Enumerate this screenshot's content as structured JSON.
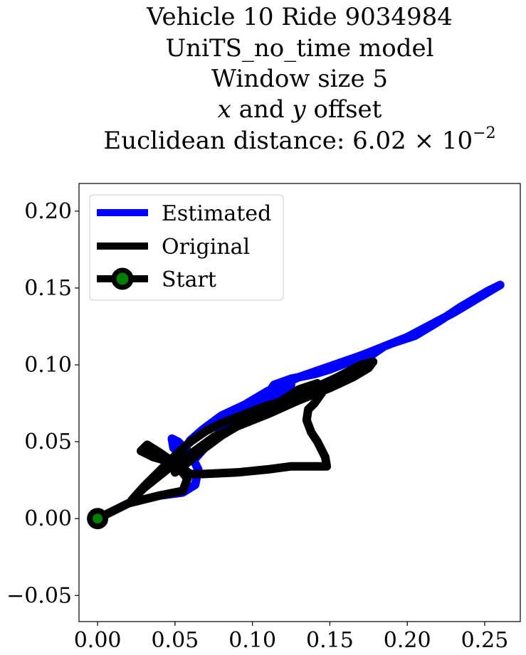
{
  "chart_data": {
    "type": "line",
    "title_lines": [
      "Vehicle 10 Ride 9034984",
      "UniTS_no_time model",
      "Window size 5"
    ],
    "title_offset": {
      "x_var": "x",
      "and1": " and ",
      "y_var": "y",
      "rest": " offset"
    },
    "title_distance": {
      "prefix": "Euclidean distance: ",
      "mantissa": "6.02",
      "times": " × 10",
      "exponent": "−2"
    },
    "xlim": [
      -0.012,
      0.273
    ],
    "ylim": [
      -0.067,
      0.218
    ],
    "x_ticks": [
      0.0,
      0.05,
      0.1,
      0.15,
      0.2,
      0.25
    ],
    "x_tick_labels": [
      "0.00",
      "0.05",
      "0.10",
      "0.15",
      "0.20",
      "0.25"
    ],
    "y_ticks": [
      -0.05,
      0.0,
      0.05,
      0.1,
      0.15,
      0.2
    ],
    "y_tick_labels": [
      "−0.05",
      "0.00",
      "0.05",
      "0.10",
      "0.15",
      "0.20"
    ],
    "grid": false,
    "legend_position": "upper-left",
    "legend": [
      {
        "label": "Estimated",
        "color": "#0000ff"
      },
      {
        "label": "Original",
        "color": "#000000"
      },
      {
        "label": "Start",
        "color": "#000000",
        "marker_fill": "#008000"
      }
    ],
    "series": [
      {
        "name": "Estimated",
        "color": "#0000ff",
        "x": [
          0.0,
          0.02,
          0.04,
          0.055,
          0.063,
          0.065,
          0.06,
          0.052,
          0.048,
          0.049,
          0.055,
          0.062,
          0.07,
          0.085,
          0.1,
          0.115,
          0.125,
          0.113,
          0.11,
          0.114,
          0.125,
          0.14,
          0.15,
          0.16,
          0.175,
          0.185,
          0.2,
          0.215,
          0.23,
          0.245,
          0.255,
          0.26,
          0.252,
          0.235,
          0.22,
          0.205,
          0.19,
          0.17,
          0.15,
          0.13,
          0.11,
          0.095,
          0.08,
          0.068,
          0.06,
          0.056,
          0.053
        ],
        "y": [
          0.0,
          0.01,
          0.015,
          0.017,
          0.022,
          0.032,
          0.042,
          0.05,
          0.052,
          0.046,
          0.04,
          0.038,
          0.047,
          0.062,
          0.072,
          0.079,
          0.087,
          0.085,
          0.081,
          0.087,
          0.091,
          0.094,
          0.097,
          0.101,
          0.105,
          0.112,
          0.118,
          0.126,
          0.134,
          0.143,
          0.149,
          0.152,
          0.148,
          0.138,
          0.128,
          0.119,
          0.114,
          0.106,
          0.099,
          0.092,
          0.083,
          0.074,
          0.067,
          0.058,
          0.051,
          0.045,
          0.038
        ]
      },
      {
        "name": "Original",
        "color": "#000000",
        "x": [
          0.0,
          0.02,
          0.04,
          0.055,
          0.058,
          0.05,
          0.04,
          0.032,
          0.028,
          0.036,
          0.05,
          0.06,
          0.068,
          0.09,
          0.11,
          0.125,
          0.14,
          0.148,
          0.147,
          0.142,
          0.138,
          0.135,
          0.136,
          0.14,
          0.145,
          0.142,
          0.13,
          0.118,
          0.108,
          0.098,
          0.08,
          0.07,
          0.06,
          0.05,
          0.04,
          0.03,
          0.022,
          0.03,
          0.045,
          0.06,
          0.075,
          0.09,
          0.11,
          0.13,
          0.15,
          0.165,
          0.175,
          0.178,
          0.17,
          0.155,
          0.14,
          0.125,
          0.11,
          0.095,
          0.08,
          0.068,
          0.06,
          0.054,
          0.05
        ],
        "y": [
          0.0,
          0.01,
          0.015,
          0.018,
          0.026,
          0.036,
          0.043,
          0.048,
          0.044,
          0.04,
          0.036,
          0.029,
          0.029,
          0.03,
          0.032,
          0.034,
          0.034,
          0.034,
          0.04,
          0.05,
          0.056,
          0.064,
          0.071,
          0.075,
          0.082,
          0.088,
          0.084,
          0.076,
          0.073,
          0.069,
          0.062,
          0.057,
          0.05,
          0.041,
          0.031,
          0.021,
          0.012,
          0.02,
          0.032,
          0.042,
          0.053,
          0.06,
          0.068,
          0.077,
          0.085,
          0.092,
          0.098,
          0.102,
          0.1,
          0.092,
          0.085,
          0.077,
          0.07,
          0.063,
          0.054,
          0.045,
          0.038,
          0.033,
          0.03
        ]
      }
    ],
    "start": {
      "name": "Start",
      "x": 0.0,
      "y": 0.0,
      "marker_fill": "#008000",
      "marker_edge": "#000000"
    }
  }
}
